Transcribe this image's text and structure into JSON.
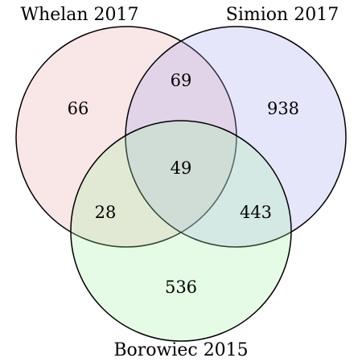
{
  "diagram": {
    "type": "venn3",
    "sets": [
      {
        "key": "A",
        "name": "Whelan 2017",
        "color": "#e8a7a7"
      },
      {
        "key": "B",
        "name": "Simion 2017",
        "color": "#a7a7f0"
      },
      {
        "key": "C",
        "name": "Borowiec 2015",
        "color": "#a7f0a7"
      }
    ],
    "regions": {
      "A_only": "66",
      "B_only": "938",
      "C_only": "536",
      "AB_only": "69",
      "AC_only": "28",
      "BC_only": "443",
      "ABC": "49"
    }
  }
}
